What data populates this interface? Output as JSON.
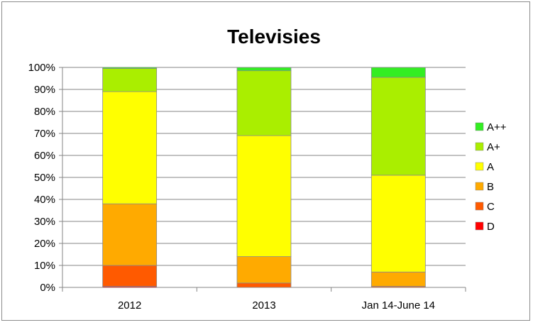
{
  "chart_data": {
    "type": "bar",
    "stacked": true,
    "percent": true,
    "title": "Televisies",
    "xlabel": "",
    "ylabel": "",
    "ylim": [
      0,
      100
    ],
    "yticks": [
      "0%",
      "10%",
      "20%",
      "30%",
      "40%",
      "50%",
      "60%",
      "70%",
      "80%",
      "90%",
      "100%"
    ],
    "grid": true,
    "legend_position": "right",
    "categories": [
      "2012",
      "2013",
      "Jan 14-June 14"
    ],
    "series": [
      {
        "name": "D",
        "color": "#ff0000",
        "values": [
          0.5,
          0.0,
          0.0
        ]
      },
      {
        "name": "C",
        "color": "#ff5a00",
        "values": [
          9.5,
          2.0,
          0.5
        ]
      },
      {
        "name": "B",
        "color": "#ffaa00",
        "values": [
          28.0,
          12.0,
          6.5
        ]
      },
      {
        "name": "A",
        "color": "#ffff00",
        "values": [
          51.0,
          55.0,
          44.0
        ]
      },
      {
        "name": "A+",
        "color": "#aaee00",
        "values": [
          10.5,
          29.5,
          44.5
        ]
      },
      {
        "name": "A++",
        "color": "#33ee22",
        "values": [
          0.5,
          1.5,
          4.5
        ]
      }
    ]
  }
}
